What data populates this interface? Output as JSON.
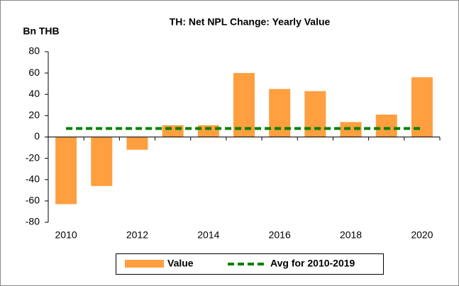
{
  "chart_data": {
    "type": "bar",
    "title": "TH: Net NPL Change: Yearly Value",
    "y_axis_label": "Bn THB",
    "categories": [
      "2010",
      null,
      "2012",
      null,
      "2014",
      null,
      "2016",
      null,
      "2018",
      null,
      "2020"
    ],
    "series": [
      {
        "name": "Value",
        "color": "#ff9f3f",
        "values": [
          -63,
          -46,
          -12,
          11,
          11,
          60,
          45,
          43,
          14,
          21,
          56
        ]
      },
      {
        "name": "Avg for 2010-2019",
        "color": "#008000",
        "type": "line",
        "dashed": true,
        "values": [
          8,
          8,
          8,
          8,
          8,
          8,
          8,
          8,
          8,
          8,
          8
        ]
      }
    ],
    "ylim": [
      -80,
      80
    ],
    "yticks": [
      -80,
      -60,
      -40,
      -20,
      {
        "value": 0,
        "label": "0"
      },
      20,
      40,
      60,
      80
    ],
    "legend": "bottom"
  }
}
